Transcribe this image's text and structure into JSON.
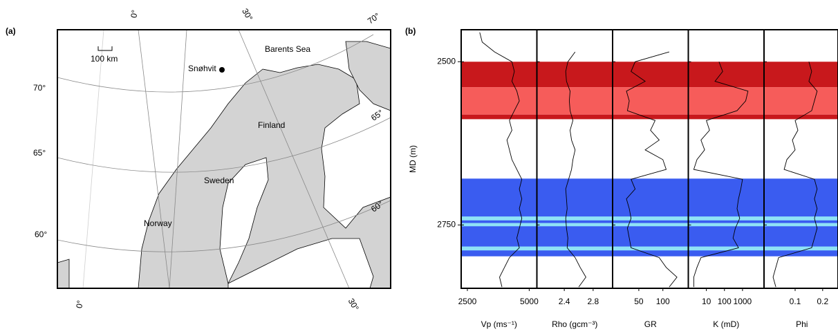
{
  "map": {
    "label": "(a)",
    "scale_bar": "100 km",
    "places": [
      "Snøhvit",
      "Barents Sea",
      "Finland",
      "Sweden",
      "Norway"
    ],
    "graticule_labels": [
      "0°",
      "30°",
      "70°",
      "70°",
      "65°",
      "65°",
      "60°",
      "60°",
      "0°",
      "30°"
    ]
  },
  "chart_data": {
    "type": "well-log",
    "label": "(b)",
    "y_label": "MD (m)",
    "ylim": [
      2451,
      2847
    ],
    "yticks": [
      2500,
      2750
    ],
    "depths": [
      2455,
      2470,
      2485,
      2500,
      2515,
      2530,
      2545,
      2560,
      2575,
      2590,
      2605,
      2620,
      2635,
      2650,
      2665,
      2680,
      2695,
      2710,
      2725,
      2740,
      2755,
      2770,
      2785,
      2800,
      2815,
      2830,
      2845
    ],
    "zones": [
      {
        "top": 2500,
        "base": 2539,
        "color": "#c8181c"
      },
      {
        "top": 2539,
        "base": 2581,
        "color": "#f65c5a"
      },
      {
        "top": 2581,
        "base": 2588,
        "color": "#c8181c"
      },
      {
        "top": 2679,
        "base": 2798,
        "color": "#3a5cf0"
      },
      {
        "top": 2737,
        "base": 2743,
        "color": "#8fe2f6"
      },
      {
        "top": 2747,
        "base": 2752,
        "color": "#8fe2f6"
      },
      {
        "top": 2783,
        "base": 2789,
        "color": "#8fe2f6"
      }
    ],
    "tracks": [
      {
        "name": "Vp (ms⁻¹)",
        "xlim": [
          2250,
          5310
        ],
        "log": false,
        "xticks": [
          2500,
          5000
        ],
        "values": [
          3000,
          3100,
          3600,
          4300,
          4400,
          4300,
          4500,
          4600,
          4400,
          4200,
          4300,
          4100,
          4200,
          4300,
          4500,
          4700,
          4600,
          4700,
          4600,
          4700,
          4600,
          4500,
          4600,
          4200,
          4000,
          3800,
          3900
        ]
      },
      {
        "name": "Rho (gcm⁻³)",
        "xlim": [
          2.02,
          3.07
        ],
        "log": false,
        "xticks": [
          2.4,
          2.8
        ],
        "values": [
          null,
          null,
          2.55,
          2.45,
          2.42,
          2.43,
          2.48,
          2.47,
          2.48,
          2.52,
          2.48,
          2.5,
          2.55,
          2.52,
          2.5,
          2.46,
          2.42,
          2.43,
          2.44,
          2.42,
          2.43,
          2.45,
          2.44,
          2.55,
          2.62,
          2.7,
          2.6
        ]
      },
      {
        "name": "GR",
        "xlim": [
          23.5,
          208
        ],
        "log": true,
        "xticks": [
          50,
          100
        ],
        "values": [
          null,
          null,
          120,
          45,
          40,
          60,
          35,
          38,
          36,
          80,
          70,
          90,
          60,
          100,
          110,
          40,
          45,
          35,
          38,
          40,
          36,
          38,
          40,
          90,
          110,
          150,
          120
        ]
      },
      {
        "name": "K (mD)",
        "xlim": [
          1,
          15500
        ],
        "log": true,
        "xticks": [
          10,
          100,
          1000
        ],
        "values": [
          null,
          null,
          null,
          50,
          80,
          30,
          2000,
          1500,
          500,
          10,
          15,
          5,
          8,
          3,
          2,
          1000,
          800,
          600,
          500,
          700,
          400,
          300,
          600,
          5,
          3,
          2,
          2
        ]
      },
      {
        "name": "Phi",
        "xlim": [
          -0.013,
          0.262
        ],
        "log": false,
        "xticks": [
          0.1,
          0.2
        ],
        "values": [
          null,
          null,
          null,
          0.15,
          0.16,
          0.15,
          0.18,
          0.17,
          0.16,
          0.1,
          0.11,
          0.09,
          0.1,
          0.07,
          0.06,
          0.17,
          0.18,
          0.17,
          0.18,
          0.17,
          0.18,
          0.17,
          0.16,
          0.04,
          0.03,
          0.02,
          0.03
        ]
      }
    ]
  }
}
